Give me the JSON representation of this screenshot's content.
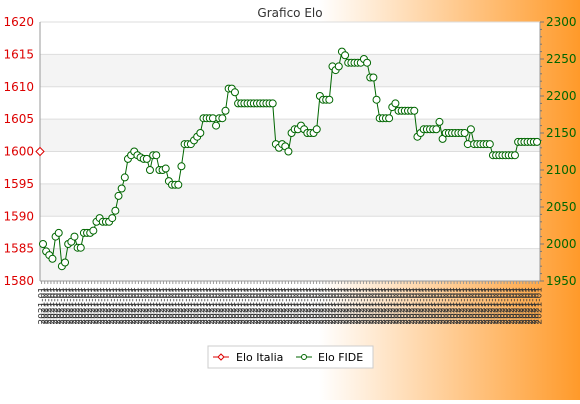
{
  "chart_data": {
    "type": "line",
    "title": "Grafico Elo",
    "y_left": {
      "min": 1580,
      "max": 1620,
      "ticks": [
        1580,
        1585,
        1590,
        1595,
        1600,
        1605,
        1610,
        1615,
        1620
      ],
      "color": "#dd0000"
    },
    "y_right": {
      "min": 1950,
      "max": 2300,
      "ticks": [
        1950,
        2000,
        2050,
        2100,
        2150,
        2200,
        2250,
        2300
      ],
      "color": "#006600"
    },
    "grid": true,
    "legend": {
      "placement": "bottom-center",
      "entries": [
        "Elo Italia",
        "Elo FIDE"
      ]
    },
    "colors": {
      "italia": "#dd0000",
      "fide": "#006600",
      "background_left": "#ffffff",
      "background_right": "#ff9a2a"
    },
    "x_tick_label": "2021-01",
    "x_tick_count": 160,
    "series": [
      {
        "name": "Elo Italia",
        "axis": "left",
        "values": [
          1600
        ]
      },
      {
        "name": "Elo FIDE",
        "axis": "right",
        "values": [
          2000,
          1990,
          1985,
          1980,
          2010,
          2015,
          1970,
          1975,
          2000,
          2003,
          2010,
          1995,
          1995,
          2015,
          2015,
          2015,
          2018,
          2030,
          2035,
          2030,
          2030,
          2030,
          2035,
          2045,
          2065,
          2075,
          2090,
          2115,
          2120,
          2125,
          2120,
          2117,
          2115,
          2115,
          2100,
          2120,
          2120,
          2100,
          2100,
          2102,
          2085,
          2080,
          2080,
          2080,
          2105,
          2135,
          2135,
          2135,
          2140,
          2145,
          2150,
          2170,
          2170,
          2170,
          2170,
          2160,
          2170,
          2170,
          2180,
          2210,
          2210,
          2205,
          2190,
          2190,
          2190,
          2190,
          2190,
          2190,
          2190,
          2190,
          2190,
          2190,
          2190,
          2190,
          2135,
          2130,
          2135,
          2132,
          2125,
          2150,
          2155,
          2155,
          2160,
          2155,
          2150,
          2150,
          2150,
          2155,
          2200,
          2195,
          2195,
          2195,
          2240,
          2235,
          2240,
          2260,
          2255,
          2245,
          2245,
          2245,
          2245,
          2245,
          2250,
          2245,
          2225,
          2225,
          2195,
          2170,
          2170,
          2170,
          2170,
          2185,
          2190,
          2180,
          2180,
          2180,
          2180,
          2180,
          2180,
          2145,
          2150,
          2155,
          2155,
          2155,
          2155,
          2155,
          2165,
          2142,
          2150,
          2150,
          2150,
          2150,
          2150,
          2150,
          2150,
          2135,
          2155,
          2135,
          2135,
          2135,
          2135,
          2135,
          2135,
          2120,
          2120,
          2120,
          2120,
          2120,
          2120,
          2120,
          2120,
          2138,
          2138,
          2138,
          2138,
          2138,
          2138,
          2138
        ]
      }
    ]
  }
}
